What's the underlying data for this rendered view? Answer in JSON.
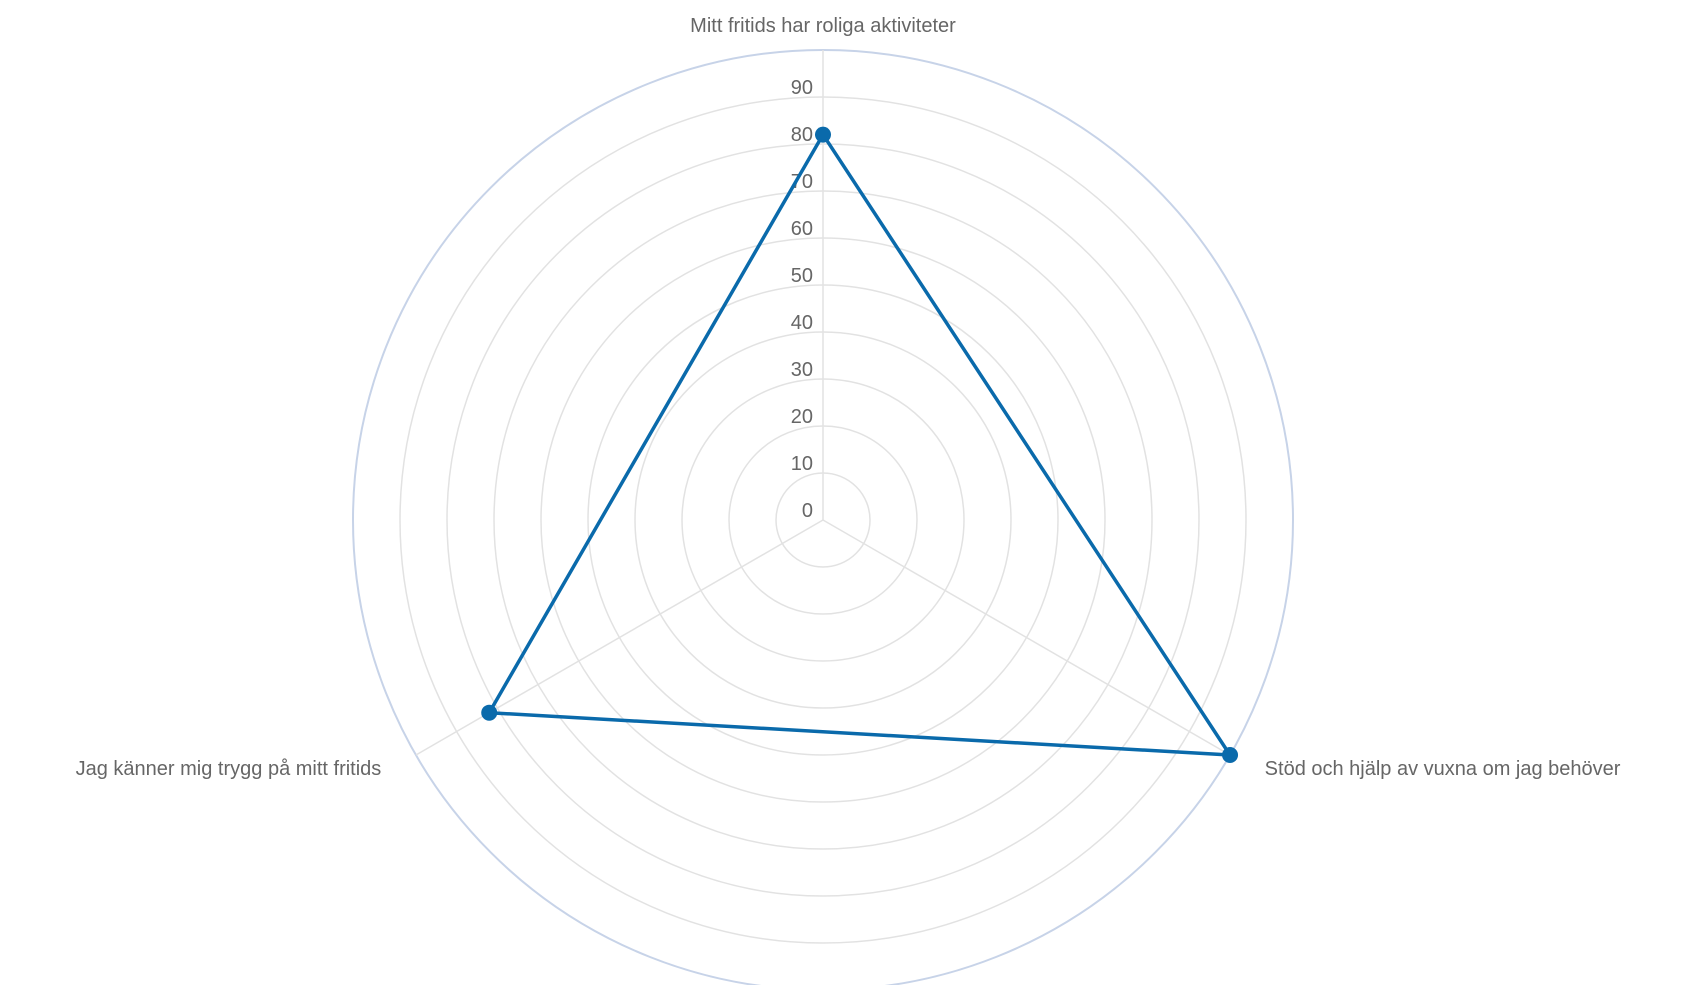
{
  "chart_data": {
    "type": "radar",
    "title": "",
    "categories": [
      "Mitt fritids har roliga aktiviteter",
      "Stöd och hjälp av vuxna om jag behöver",
      "Jag känner mig trygg på mitt fritids"
    ],
    "radial_ticks": [
      "0",
      "10",
      "20",
      "30",
      "40",
      "50",
      "60",
      "70",
      "80",
      "90"
    ],
    "rmin": 0,
    "rmax": 100,
    "grid_step": 10,
    "grid": true,
    "series": [
      {
        "values": [
          82,
          100,
          82
        ]
      }
    ],
    "colors": {
      "series": "#0a6aab",
      "grid": "#e2e2e2",
      "outer_ring": "#c7d3e8",
      "spoke": "#e2e2e2",
      "axis_label": "#666666",
      "tick_label": "#666666"
    }
  }
}
